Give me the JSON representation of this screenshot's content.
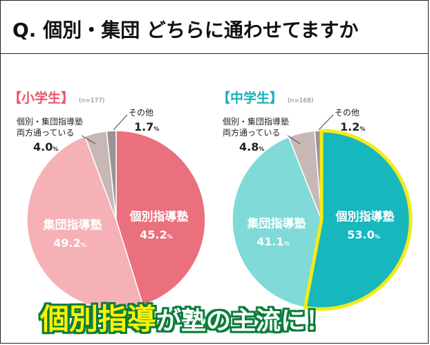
{
  "header": {
    "question": "Q. 個別・集団 どちらに通わせてますか"
  },
  "banner": {
    "highlight": "個別指導",
    "rest": "が塾の主流に！"
  },
  "colors": {
    "elem_individual": "#e9707c",
    "elem_group": "#f5b1b6",
    "elem_both": "#c7b8b6",
    "elem_other": "#9a9293",
    "elem_title": "#e9566a",
    "jhs_individual": "#17b7be",
    "jhs_group": "#7fdad8",
    "jhs_both": "#c7b8b6",
    "jhs_other": "#9a9293",
    "jhs_title": "#19aeb8",
    "highlight_border": "#f4ea1a",
    "banner_stroke": "#0a7d3a"
  },
  "chart_data": [
    {
      "type": "pie",
      "title": "【小学生】",
      "sample": "(n=177)",
      "series": [
        {
          "name": "個別指導塾",
          "value": 45.2
        },
        {
          "name": "集団指導塾",
          "value": 49.2
        },
        {
          "name": "個別・集団指導塾両方通っている",
          "value": 4.0
        },
        {
          "name": "その他",
          "value": 1.7
        }
      ],
      "labels": {
        "individual_name": "個別指導塾",
        "individual_value": "45.2",
        "group_name": "集団指導塾",
        "group_value": "49.2",
        "both_line1": "個別・集団指導塾",
        "both_line2": "両方通っている",
        "both_value": "4.0",
        "other_name": "その他",
        "other_value": "1.7",
        "unit": "%"
      }
    },
    {
      "type": "pie",
      "title": "【中学生】",
      "sample": "(n=168)",
      "series": [
        {
          "name": "個別指導塾",
          "value": 53.0
        },
        {
          "name": "集団指導塾",
          "value": 41.1
        },
        {
          "name": "個別・集団指導塾両方通っている",
          "value": 4.8
        },
        {
          "name": "その他",
          "value": 1.2
        }
      ],
      "labels": {
        "individual_name": "個別指導塾",
        "individual_value": "53.0",
        "group_name": "集団指導塾",
        "group_value": "41.1",
        "both_line1": "個別・集団指導塾",
        "both_line2": "両方通っている",
        "both_value": "4.8",
        "other_name": "その他",
        "other_value": "1.2",
        "unit": "%"
      }
    }
  ]
}
